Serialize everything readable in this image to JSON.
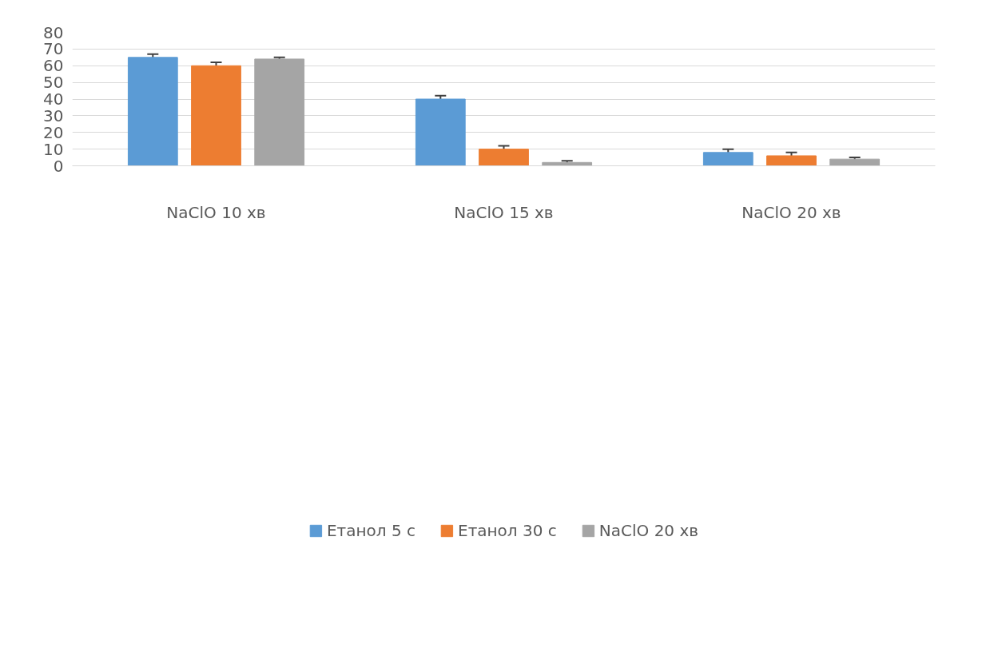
{
  "chart_data": {
    "type": "bar",
    "categories": [
      "NaClO 10 хв",
      "NaClO 15 хв",
      "NaClO 20 хв"
    ],
    "series": [
      {
        "name": "Етанол 5 с",
        "color": "#5b9bd5",
        "values": [
          65,
          40,
          8
        ],
        "errors": [
          2,
          2,
          2
        ]
      },
      {
        "name": "Етанол 30 с",
        "color": "#ed7d31",
        "values": [
          60,
          10,
          6
        ],
        "errors": [
          2,
          2,
          2
        ]
      },
      {
        "name": "NaClO 20 хв",
        "color": "#a5a5a5",
        "values": [
          64,
          2,
          4
        ],
        "errors": [
          1,
          1,
          1
        ]
      }
    ],
    "ylim": [
      0,
      80
    ],
    "yticks": [
      0,
      10,
      20,
      30,
      40,
      50,
      60,
      70,
      80
    ],
    "grid": "y",
    "legend": "bottom"
  }
}
